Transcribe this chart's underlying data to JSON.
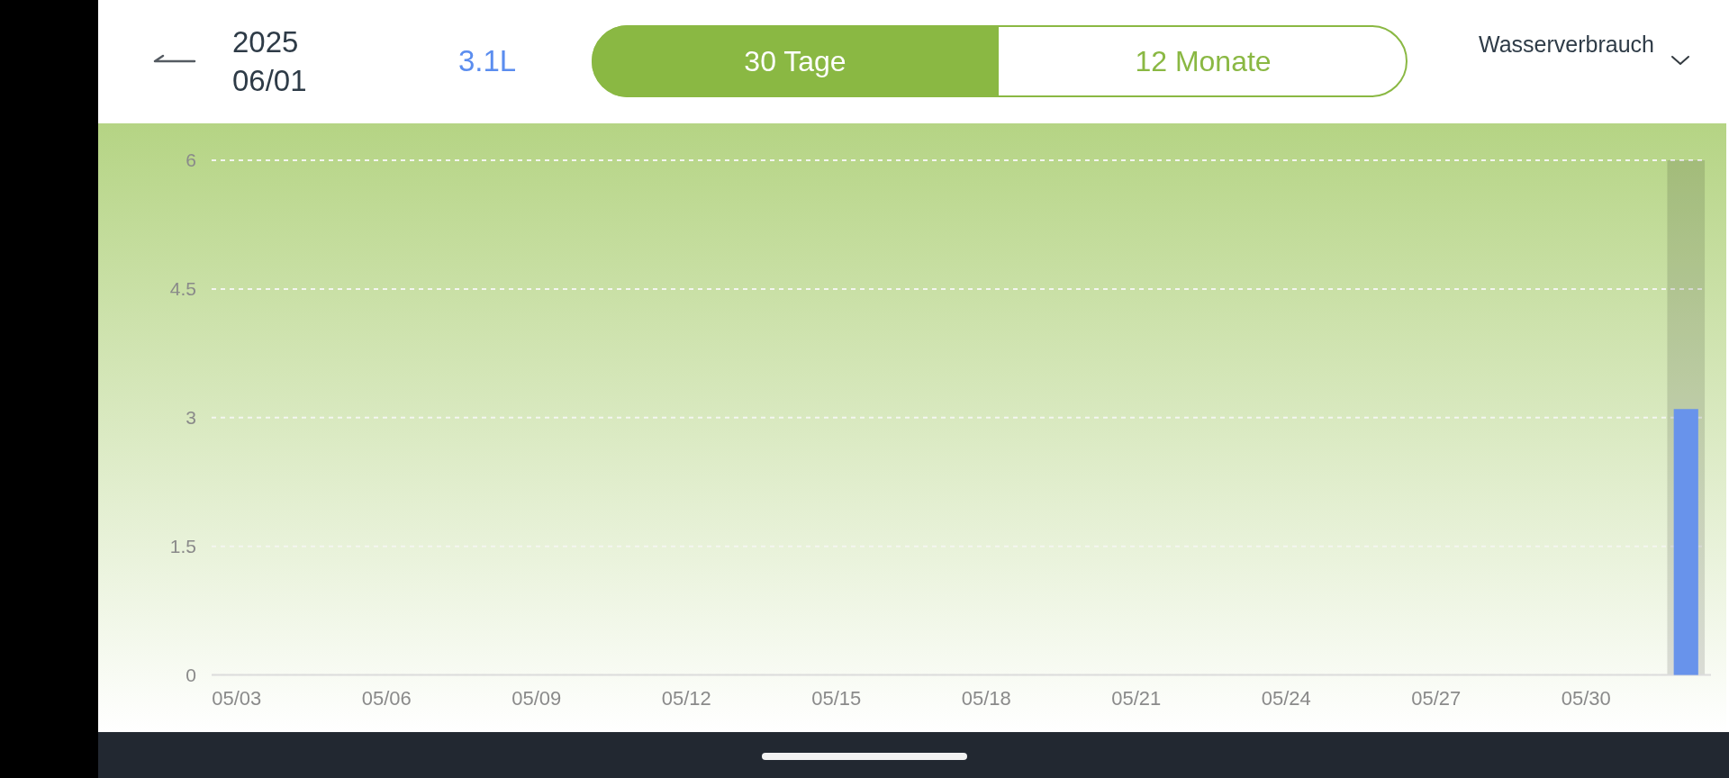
{
  "chart_data": {
    "type": "bar",
    "title": "Wasserverbrauch",
    "annotations": [
      "2025",
      "06/01",
      "3.1L",
      "30 Tage",
      "12 Monate"
    ],
    "x": [
      "2025-05-03",
      "2025-05-04",
      "2025-05-05",
      "2025-05-06",
      "2025-05-07",
      "2025-05-08",
      "2025-05-09",
      "2025-05-10",
      "2025-05-11",
      "2025-05-12",
      "2025-05-13",
      "2025-05-14",
      "2025-05-15",
      "2025-05-16",
      "2025-05-17",
      "2025-05-18",
      "2025-05-19",
      "2025-05-20",
      "2025-05-21",
      "2025-05-22",
      "2025-05-23",
      "2025-05-24",
      "2025-05-25",
      "2025-05-26",
      "2025-05-27",
      "2025-05-28",
      "2025-05-29",
      "2025-05-30",
      "2025-05-31",
      "2025-06-01"
    ],
    "values": [
      0,
      0,
      0,
      0,
      0,
      0,
      0,
      0,
      0,
      0,
      0,
      0,
      0,
      0,
      0,
      0,
      0,
      0,
      0,
      0,
      0,
      0,
      0,
      0,
      0,
      0,
      0,
      0,
      0,
      3.1
    ],
    "color": "#6893eb",
    "xlim": [
      "2025-05-02T12:00",
      "2025-06-01T12:00"
    ],
    "xticks": [
      {
        "value": "2025-05-03",
        "label": "05/03"
      },
      {
        "value": "2025-05-06",
        "label": "05/06"
      },
      {
        "value": "2025-05-09",
        "label": "05/09"
      },
      {
        "value": "2025-05-12",
        "label": "05/12"
      },
      {
        "value": "2025-05-15",
        "label": "05/15"
      },
      {
        "value": "2025-05-18",
        "label": "05/18"
      },
      {
        "value": "2025-05-21",
        "label": "05/21"
      },
      {
        "value": "2025-05-24",
        "label": "05/24"
      },
      {
        "value": "2025-05-27",
        "label": "05/27"
      },
      {
        "value": "2025-05-30",
        "label": "05/30"
      }
    ],
    "ylim": [
      0,
      6
    ],
    "yticks": [
      0,
      1.5,
      3,
      4.5,
      6
    ],
    "grid": "y",
    "bands": [
      {
        "axis": "x",
        "from": "2025-05-31T15:00",
        "to": "2025-06-01T09:00"
      }
    ]
  }
}
